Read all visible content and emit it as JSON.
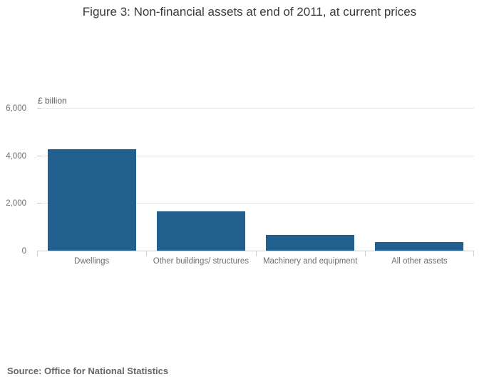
{
  "title": "Figure 3: Non-financial assets at end of 2011, at current prices",
  "source_note": "Source: Office for National Statistics",
  "unit_label": "£ billion",
  "colors": {
    "bar": "#215f8e",
    "gridline": "#e2e2e2",
    "axis_line": "#c3d2e0",
    "title_text": "#3a3a3a",
    "label_text": "#6e6e6e",
    "source_text": "#666666"
  },
  "chart_data": {
    "type": "bar",
    "title": "Figure 3: Non-financial assets at end of 2011, at current prices",
    "categories": [
      "Dwellings",
      "Other buildings/ structures",
      "Machinery and equipment",
      "All other assets"
    ],
    "values": [
      4270,
      1650,
      650,
      350
    ],
    "xlabel": "",
    "ylabel": "£ billion",
    "ylim": [
      0,
      6000
    ],
    "yticks": [
      0,
      2000,
      4000,
      6000
    ],
    "ytick_labels": [
      "0",
      "2,000",
      "4,000",
      "6,000"
    ],
    "grid": true,
    "legend": false,
    "bar_color": "#215f8e"
  }
}
